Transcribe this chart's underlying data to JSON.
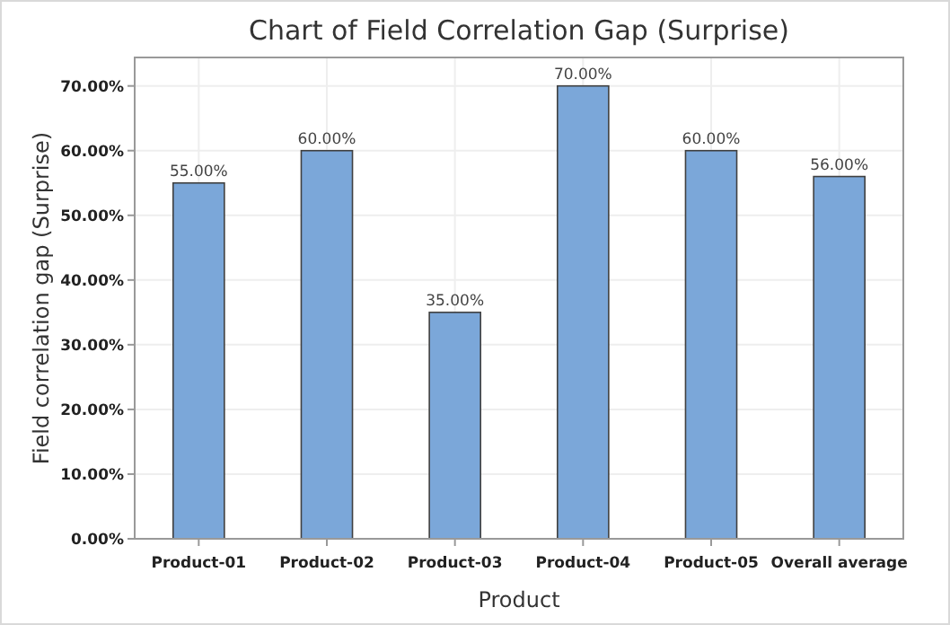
{
  "chart_data": {
    "type": "bar",
    "title": "Chart of Field Correlation Gap (Surprise)",
    "xlabel": "Product",
    "ylabel": "Field correlation gap (Surprise)",
    "categories": [
      "Product-01",
      "Product-02",
      "Product-03",
      "Product-04",
      "Product-05",
      "Overall average"
    ],
    "values": [
      55,
      60,
      35,
      70,
      60,
      56
    ],
    "color": "#7ba7d9",
    "value_labels": [
      "55.00%",
      "60.00%",
      "35.00%",
      "70.00%",
      "60.00%",
      "56.00%"
    ],
    "ylim": [
      0,
      74.4
    ],
    "yticks": [
      {
        "value": 0,
        "label": "0.00%"
      },
      {
        "value": 10,
        "label": "10.00%"
      },
      {
        "value": 20,
        "label": "20.00%"
      },
      {
        "value": 30,
        "label": "30.00%"
      },
      {
        "value": 40,
        "label": "40.00%"
      },
      {
        "value": 50,
        "label": "50.00%"
      },
      {
        "value": 60,
        "label": "60.00%"
      },
      {
        "value": 70,
        "label": "70.00%"
      }
    ],
    "grid": true
  }
}
